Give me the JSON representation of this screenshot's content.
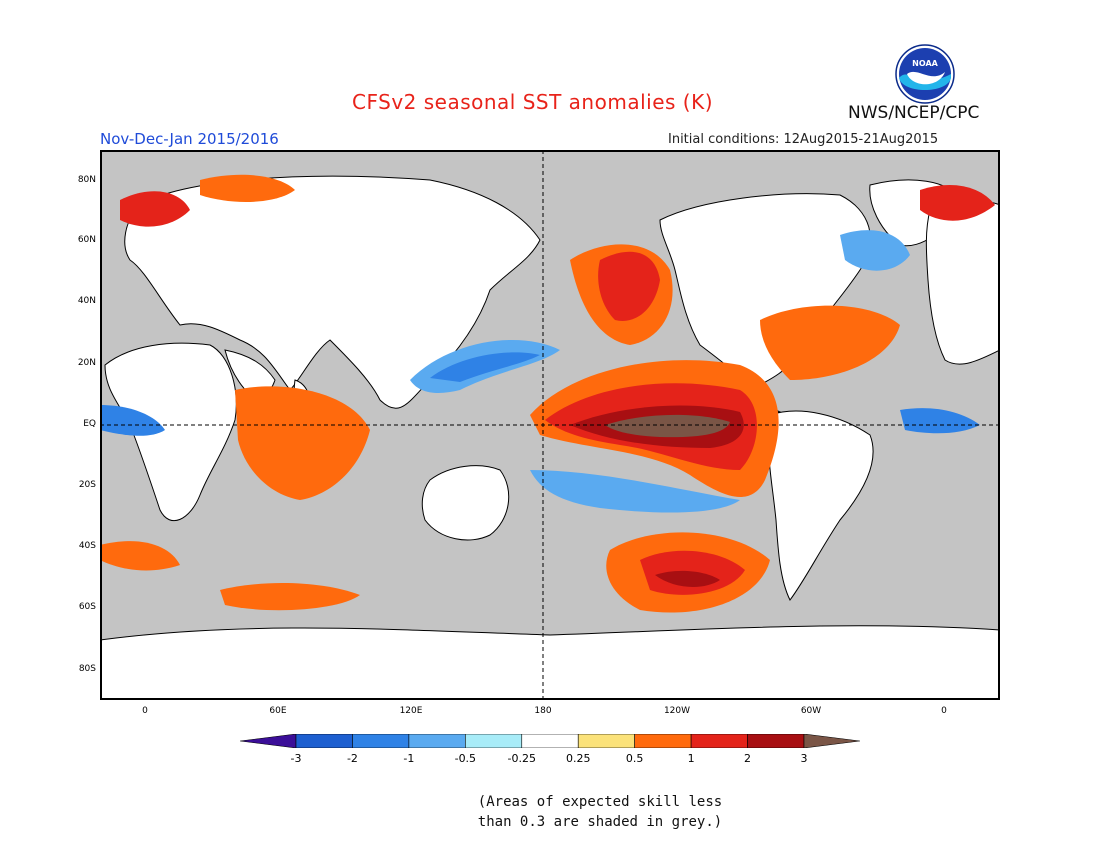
{
  "title": "CFSv2 seasonal SST anomalies (K)",
  "period": "Nov-Dec-Jan 2015/2016",
  "initial_conditions": "Initial conditions: 12Aug2015-21Aug2015",
  "agency": "NWS/NCEP/CPC",
  "logo_text": "NOAA",
  "lat_labels": [
    "80N",
    "60N",
    "40N",
    "20N",
    "EQ",
    "20S",
    "40S",
    "60S",
    "80S"
  ],
  "lon_labels": [
    "0",
    "60E",
    "120E",
    "180",
    "120W",
    "60W",
    "0"
  ],
  "colorbar": {
    "labels": [
      "-3",
      "-2",
      "-1",
      "-0.5",
      "-0.25",
      "0.25",
      "0.5",
      "1",
      "2",
      "3"
    ],
    "colors": [
      "#3b0e98",
      "#1d5fd0",
      "#2f82e6",
      "#5aaaf0",
      "#a8ecf8",
      "#ffffff",
      "#fbe27a",
      "#ff6a0d",
      "#e4231a",
      "#a80f12",
      "#7a5546"
    ]
  },
  "note": [
    "(Areas of expected skill less",
    "than 0.3 are shaded in grey.)"
  ],
  "colors": {
    "land": "#ffffff",
    "grey_ocean": "#c4c4c4",
    "coast": "#000000"
  }
}
